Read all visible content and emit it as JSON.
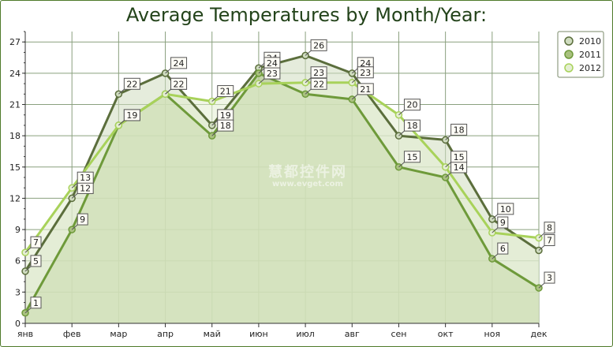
{
  "chart_data": {
    "type": "area",
    "title": "Average Temperatures by Month/Year:",
    "categories": [
      "янв",
      "фев",
      "мар",
      "апр",
      "май",
      "июн",
      "июл",
      "авг",
      "сен",
      "окт",
      "ноя",
      "дек"
    ],
    "y_ticks": [
      "0",
      "3",
      "6",
      "9",
      "12",
      "15",
      "18",
      "21",
      "24",
      "27"
    ],
    "ylim": [
      0,
      28
    ],
    "grid": true,
    "legend_position": "top-right",
    "series": [
      {
        "name": "2010",
        "values": [
          5,
          12,
          22,
          24,
          19,
          24.5,
          25.7,
          24,
          18,
          17.6,
          10,
          7
        ],
        "labels": [
          "5",
          "12",
          "22",
          "24",
          "19",
          "24",
          "26",
          "24",
          "18",
          "18",
          "10",
          "7"
        ],
        "color": "#5b6e3c",
        "fill": "#cfdcbf"
      },
      {
        "name": "2011",
        "values": [
          1,
          9,
          19,
          22,
          18,
          24,
          22,
          21.5,
          15,
          14,
          6.2,
          3.4
        ],
        "labels": [
          "1",
          "9",
          "19",
          "22",
          "18",
          "24",
          "22",
          "21",
          "15",
          "14",
          "6",
          "3"
        ],
        "color": "#6e9a3a",
        "fill": "#a9c17f"
      },
      {
        "name": "2012",
        "values": [
          6.8,
          13,
          19,
          22,
          21.3,
          23,
          23.1,
          23.1,
          20,
          15,
          8.7,
          8.2
        ],
        "labels": [
          "7",
          "13",
          "19",
          "22",
          "21",
          "23",
          "23",
          "23",
          "20",
          "15",
          "9",
          "8"
        ],
        "color": "#a8d25a",
        "fill": "#e4eed2"
      }
    ]
  },
  "watermark": {
    "text": "慧都控件网",
    "url": "www.evget.com"
  }
}
